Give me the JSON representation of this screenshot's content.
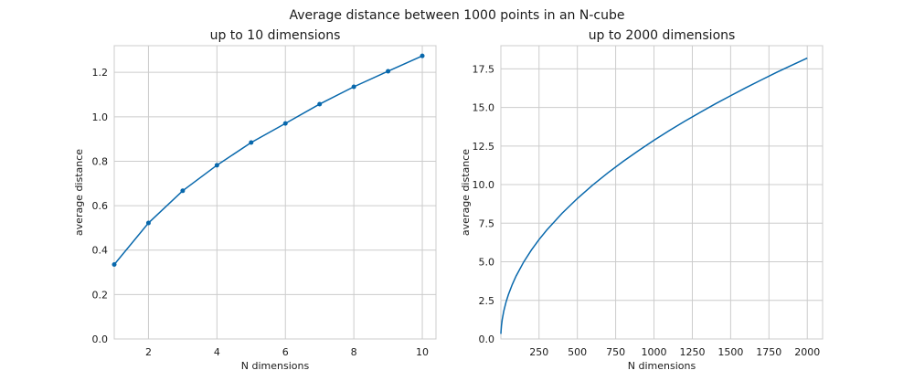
{
  "figure_title": "Average distance between 1000 points in an N-cube",
  "series_color": "#0868ac",
  "chart_data": [
    {
      "type": "line",
      "title": "up to 10 dimensions",
      "xlabel": "N dimensions",
      "ylabel": "average distance",
      "xlim": [
        1,
        10.4
      ],
      "ylim": [
        0,
        1.32
      ],
      "xticks": [
        2,
        4,
        6,
        8,
        10
      ],
      "yticks": [
        0.0,
        0.2,
        0.4,
        0.6,
        0.8,
        1.0,
        1.2
      ],
      "ytick_format": 1,
      "grid": true,
      "markers": true,
      "x": [
        1,
        2,
        3,
        4,
        5,
        6,
        7,
        8,
        9,
        10
      ],
      "y": [
        0.335,
        0.522,
        0.667,
        0.782,
        0.884,
        0.97,
        1.057,
        1.135,
        1.205,
        1.274
      ]
    },
    {
      "type": "line",
      "title": "up to 2000 dimensions",
      "xlabel": "N dimensions",
      "ylabel": "average distance",
      "xlim": [
        1,
        2100
      ],
      "ylim": [
        0,
        19
      ],
      "xticks": [
        250,
        500,
        750,
        1000,
        1250,
        1500,
        1750,
        2000
      ],
      "yticks": [
        0.0,
        2.5,
        5.0,
        7.5,
        10.0,
        12.5,
        15.0,
        17.5
      ],
      "ytick_format": 1,
      "grid": true,
      "markers": false,
      "x": [
        1,
        2,
        5,
        10,
        20,
        35,
        50,
        75,
        100,
        150,
        200,
        250,
        300,
        400,
        500,
        600,
        700,
        800,
        900,
        1000,
        1100,
        1200,
        1300,
        1400,
        1500,
        1600,
        1700,
        1800,
        1900,
        2000
      ],
      "y": [
        0.33,
        0.52,
        0.88,
        1.27,
        1.81,
        2.4,
        2.87,
        3.52,
        4.07,
        4.99,
        5.76,
        6.44,
        7.05,
        8.14,
        9.1,
        9.97,
        10.77,
        11.51,
        12.21,
        12.87,
        13.5,
        14.1,
        14.67,
        15.23,
        15.76,
        16.28,
        16.78,
        17.27,
        17.74,
        18.2
      ]
    }
  ]
}
